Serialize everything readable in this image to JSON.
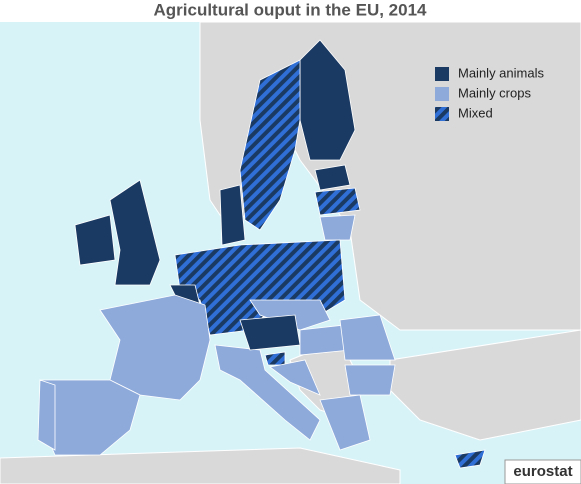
{
  "title": "Agricultural ouput in the EU, 2014",
  "legend": [
    {
      "label": "Mainly animals",
      "color": "#1b3a63",
      "pattern": "solid"
    },
    {
      "label": "Mainly crops",
      "color": "#8eaadb",
      "pattern": "solid"
    },
    {
      "label": "Mixed",
      "color": "#2f6fd6",
      "pattern": "hatched"
    }
  ],
  "source": "eurostat"
}
